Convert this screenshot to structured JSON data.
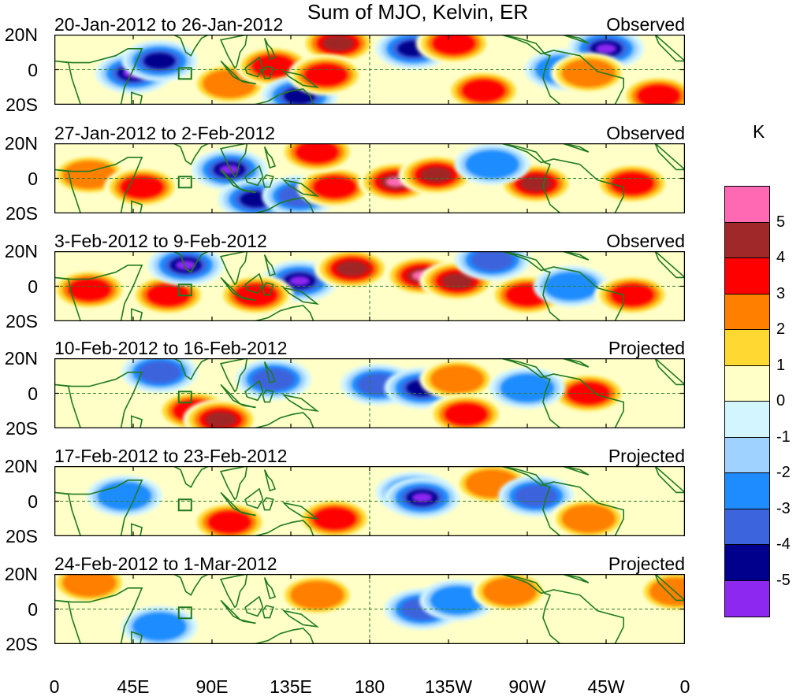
{
  "chart_data": {
    "type": "heatmap",
    "title": "Sum of MJO, Kelvin, ER",
    "unit_label": "K",
    "x_ticks": [
      "0",
      "45E",
      "90E",
      "135E",
      "180",
      "135W",
      "90W",
      "45W",
      "0"
    ],
    "y_ticks": [
      "20N",
      "0",
      "20S"
    ],
    "xlim": [
      0,
      360
    ],
    "ylim": [
      -20,
      20
    ],
    "colorbar": {
      "levels": [
        5,
        4,
        3,
        2,
        1,
        0,
        -1,
        -2,
        -3,
        -4,
        -5
      ],
      "tick_labels": [
        "5",
        "4",
        "3",
        "2",
        "1",
        "0",
        "-1",
        "-2",
        "-3",
        "-4",
        "-5"
      ],
      "colors": [
        "#ff69b4",
        "#a02828",
        "#ff0000",
        "#ff7f00",
        "#ffd932",
        "#ffffc8",
        "#d2f5ff",
        "#a0d2ff",
        "#1e8cff",
        "#3c64dc",
        "#00008c",
        "#8c28f0"
      ]
    },
    "panels": [
      {
        "dates": "20-Jan-2012 to 26-Jan-2012",
        "status": "Observed",
        "features": [
          {
            "lon": 45,
            "lat": -2,
            "value": -5
          },
          {
            "lon": 60,
            "lat": 5,
            "value": -4
          },
          {
            "lon": 100,
            "lat": -8,
            "value": 2
          },
          {
            "lon": 125,
            "lat": 2,
            "value": 3
          },
          {
            "lon": 140,
            "lat": -15,
            "value": -4
          },
          {
            "lon": 162,
            "lat": 15,
            "value": 4
          },
          {
            "lon": 155,
            "lat": -3,
            "value": 3
          },
          {
            "lon": 205,
            "lat": 12,
            "value": -4
          },
          {
            "lon": 228,
            "lat": 15,
            "value": 3
          },
          {
            "lon": 245,
            "lat": -12,
            "value": 3
          },
          {
            "lon": 290,
            "lat": 0,
            "value": -2
          },
          {
            "lon": 315,
            "lat": 12,
            "value": -5
          },
          {
            "lon": 305,
            "lat": -2,
            "value": 2
          },
          {
            "lon": 345,
            "lat": -15,
            "value": 3
          }
        ]
      },
      {
        "dates": "27-Jan-2012 to 2-Feb-2012",
        "status": "Observed",
        "features": [
          {
            "lon": 20,
            "lat": 2,
            "value": 2
          },
          {
            "lon": 50,
            "lat": -5,
            "value": 3
          },
          {
            "lon": 100,
            "lat": 5,
            "value": -5
          },
          {
            "lon": 115,
            "lat": -12,
            "value": -4
          },
          {
            "lon": 140,
            "lat": -10,
            "value": -3
          },
          {
            "lon": 160,
            "lat": -5,
            "value": 3
          },
          {
            "lon": 195,
            "lat": -2,
            "value": 5
          },
          {
            "lon": 218,
            "lat": 2,
            "value": 4
          },
          {
            "lon": 275,
            "lat": -3,
            "value": 4
          },
          {
            "lon": 330,
            "lat": -3,
            "value": 3
          },
          {
            "lon": 250,
            "lat": 8,
            "value": -2
          },
          {
            "lon": 150,
            "lat": 15,
            "value": 3
          }
        ]
      },
      {
        "dates": "3-Feb-2012 to 9-Feb-2012",
        "status": "Observed",
        "features": [
          {
            "lon": 20,
            "lat": -2,
            "value": 3
          },
          {
            "lon": 65,
            "lat": -5,
            "value": 3
          },
          {
            "lon": 75,
            "lat": 12,
            "value": -5
          },
          {
            "lon": 140,
            "lat": 3,
            "value": -5
          },
          {
            "lon": 115,
            "lat": -5,
            "value": 3
          },
          {
            "lon": 170,
            "lat": 10,
            "value": 4
          },
          {
            "lon": 210,
            "lat": 6,
            "value": 5
          },
          {
            "lon": 230,
            "lat": 3,
            "value": 4
          },
          {
            "lon": 270,
            "lat": -5,
            "value": 3
          },
          {
            "lon": 295,
            "lat": 0,
            "value": -2
          },
          {
            "lon": 330,
            "lat": -5,
            "value": 3
          },
          {
            "lon": 250,
            "lat": 15,
            "value": -3
          }
        ]
      },
      {
        "dates": "10-Feb-2012 to 16-Feb-2012",
        "status": "Projected",
        "features": [
          {
            "lon": 80,
            "lat": -10,
            "value": 3
          },
          {
            "lon": 95,
            "lat": -15,
            "value": 4
          },
          {
            "lon": 60,
            "lat": 12,
            "value": -3
          },
          {
            "lon": 125,
            "lat": 8,
            "value": -3
          },
          {
            "lon": 185,
            "lat": 5,
            "value": -3
          },
          {
            "lon": 210,
            "lat": 3,
            "value": -4
          },
          {
            "lon": 230,
            "lat": 8,
            "value": 2
          },
          {
            "lon": 235,
            "lat": -12,
            "value": 3
          },
          {
            "lon": 305,
            "lat": 0,
            "value": 3
          },
          {
            "lon": 270,
            "lat": 3,
            "value": -2
          }
        ]
      },
      {
        "dates": "17-Feb-2012 to 23-Feb-2012",
        "status": "Projected",
        "features": [
          {
            "lon": 205,
            "lat": 5,
            "value": -4
          },
          {
            "lon": 210,
            "lat": 2,
            "value": -5
          },
          {
            "lon": 160,
            "lat": -10,
            "value": 3
          },
          {
            "lon": 100,
            "lat": -12,
            "value": 3
          },
          {
            "lon": 250,
            "lat": 10,
            "value": 2
          },
          {
            "lon": 275,
            "lat": 3,
            "value": -3
          },
          {
            "lon": 40,
            "lat": 3,
            "value": -2
          },
          {
            "lon": 305,
            "lat": -10,
            "value": 2
          }
        ]
      },
      {
        "dates": "24-Feb-2012 to 1-Mar-2012",
        "status": "Projected",
        "features": [
          {
            "lon": 210,
            "lat": 0,
            "value": -3
          },
          {
            "lon": 230,
            "lat": 5,
            "value": -2
          },
          {
            "lon": 150,
            "lat": 8,
            "value": 2
          },
          {
            "lon": 260,
            "lat": 10,
            "value": 2
          },
          {
            "lon": 60,
            "lat": -10,
            "value": -2
          },
          {
            "lon": 20,
            "lat": 15,
            "value": 2
          },
          {
            "lon": 355,
            "lat": 10,
            "value": 2
          }
        ]
      }
    ]
  }
}
